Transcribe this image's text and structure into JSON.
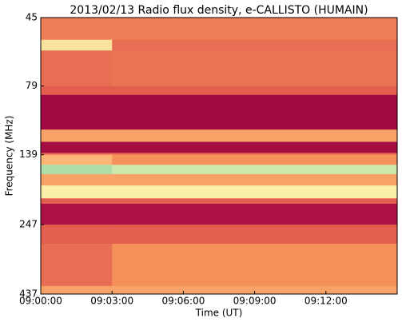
{
  "chart_data": {
    "type": "heatmap",
    "title": "2013/02/13  Radio flux density, e-CALLISTO (HUMAIN)",
    "x_label": "Time (UT)",
    "y_label": "Frequency (MHz)",
    "xlim": [
      32400,
      33300
    ],
    "xticks": [
      {
        "value": 32400,
        "label": "09:00:00"
      },
      {
        "value": 32580,
        "label": "09:03:00"
      },
      {
        "value": 32760,
        "label": "09:06:00"
      },
      {
        "value": 32940,
        "label": "09:09:00"
      },
      {
        "value": 33120,
        "label": "09:12:00"
      }
    ],
    "ylim": [
      437,
      45
    ],
    "yticks": [
      45,
      79,
      139,
      247,
      437
    ],
    "y_log": true,
    "x_edges": [
      32400,
      32580,
      33300
    ],
    "y_edges": [
      45,
      54,
      59,
      79,
      85,
      113,
      125,
      137,
      139,
      151,
      163,
      179,
      199,
      208,
      247,
      289,
      409,
      437
    ],
    "values": [
      [
        0.45,
        0.45
      ],
      [
        0.75,
        0.4
      ],
      [
        0.4,
        0.42
      ],
      [
        0.35,
        0.35
      ],
      [
        0.03,
        0.03
      ],
      [
        0.55,
        0.55
      ],
      [
        0.05,
        0.05
      ],
      [
        0.4,
        0.4
      ],
      [
        0.6,
        0.5
      ],
      [
        0.95,
        0.9
      ],
      [
        0.55,
        0.55
      ],
      [
        0.8,
        0.8
      ],
      [
        0.35,
        0.35
      ],
      [
        0.07,
        0.07
      ],
      [
        0.35,
        0.35
      ],
      [
        0.4,
        0.5
      ],
      [
        0.55,
        0.55
      ]
    ],
    "colormap": [
      "#990040",
      "#c42c48",
      "#e0584e",
      "#f4905a",
      "#fdd08a",
      "#f7f7b0",
      "#8fd3a8"
    ]
  }
}
